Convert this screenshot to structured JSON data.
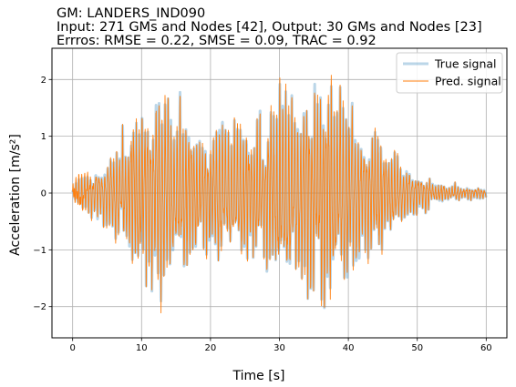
{
  "chart_data": {
    "type": "line",
    "title_lines": [
      "GM: LANDERS_IND090",
      "Input: 271 GMs and Nodes [42], Output: 30 GMs and Nodes [23]",
      "Errros: RMSE = 0.22, SMSE = 0.09, TRAC = 0.92"
    ],
    "xlabel": "Time [s]",
    "ylabel": "Acceleration [m/s²]",
    "xlim": [
      -3,
      63
    ],
    "ylim": [
      -2.55,
      2.55
    ],
    "xticks": [
      0,
      10,
      20,
      30,
      40,
      50,
      60
    ],
    "xtick_labels": [
      "0",
      "10",
      "20",
      "30",
      "40",
      "50",
      "60"
    ],
    "yticks": [
      -2,
      -1,
      0,
      1,
      2
    ],
    "ytick_labels": [
      "−2",
      "−1",
      "0",
      "1",
      "2"
    ],
    "grid": true,
    "legend_position": "top-right",
    "dominant_frequency_hz": 2.4,
    "envelope": {
      "t": [
        0,
        1,
        2,
        3,
        4,
        5,
        6,
        7,
        8,
        9,
        10,
        11,
        12,
        13,
        14,
        15,
        16,
        17,
        18,
        19,
        20,
        21,
        22,
        23,
        24,
        25,
        26,
        27,
        28,
        29,
        30,
        31,
        32,
        33,
        34,
        35,
        36,
        37,
        38,
        39,
        40,
        41,
        42,
        43,
        44,
        45,
        46,
        47,
        48,
        49,
        50,
        51,
        52,
        53,
        54,
        55,
        56,
        57,
        58,
        59,
        60
      ],
      "amp": [
        0.05,
        0.3,
        0.4,
        0.45,
        0.5,
        0.6,
        0.8,
        0.9,
        1.3,
        1.4,
        1.6,
        1.75,
        1.75,
        1.7,
        1.65,
        1.6,
        1.5,
        1.4,
        1.2,
        1.15,
        1.15,
        1.2,
        1.25,
        1.3,
        1.3,
        1.3,
        1.25,
        1.2,
        1.2,
        1.5,
        1.9,
        2.0,
        1.8,
        1.75,
        1.85,
        1.95,
        2.0,
        1.9,
        1.8,
        1.75,
        1.7,
        1.55,
        1.4,
        1.3,
        1.1,
        0.9,
        0.75,
        0.6,
        0.5,
        0.4,
        0.35,
        0.3,
        0.25,
        0.2,
        0.18,
        0.15,
        0.14,
        0.12,
        0.1,
        0.1,
        0.08
      ]
    },
    "series": [
      {
        "name": "True signal",
        "color": "#1f77b4",
        "opacity": 0.3,
        "role": "reference"
      },
      {
        "name": "Pred. signal",
        "color": "#ff7f0e",
        "opacity": 1.0,
        "role": "prediction"
      }
    ]
  }
}
